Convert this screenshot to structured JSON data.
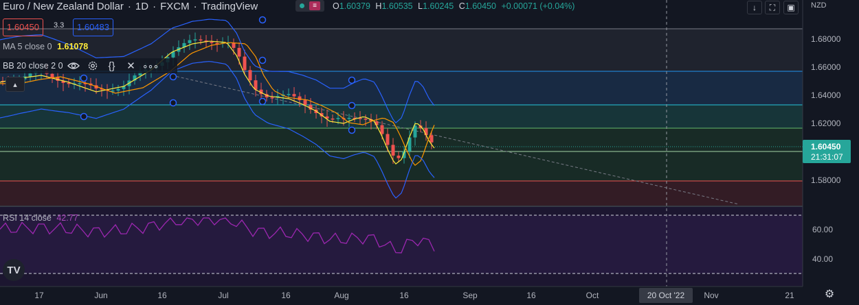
{
  "header": {
    "symbol": "Euro / New Zealand Dollar",
    "interval": "1D",
    "broker": "FXCM",
    "platform": "TradingView",
    "open_label": "O",
    "open": "1.60379",
    "high_label": "H",
    "high": "1.60535",
    "low_label": "L",
    "low": "1.60245",
    "close_label": "C",
    "close": "1.60450",
    "change": "+0.00071 (+0.04%)"
  },
  "quote": {
    "sell": "1.60450",
    "spread": "3.3",
    "buy": "1.60483"
  },
  "indicators": {
    "ma_label": "MA 5 close 0",
    "ma_value": "1.61078",
    "bb_label": "BB 20 close 2 0",
    "rsi_label": "RSI 14 close",
    "rsi_value": "42.77"
  },
  "price_axis": {
    "currency": "NZD",
    "labels": [
      "1.68000",
      "1.66000",
      "1.64000",
      "1.62000",
      "1.58000"
    ],
    "current_price": "1.60450",
    "countdown": "21:31:07"
  },
  "rsi_axis": {
    "labels": [
      "60.00",
      "40.00"
    ]
  },
  "time_axis": {
    "labels": [
      "17",
      "Jun",
      "16",
      "Jul",
      "16",
      "Aug",
      "16",
      "Sep",
      "16",
      "Oct",
      "Nov",
      "21"
    ],
    "crosshair_date": "20 Oct '22"
  },
  "colors": {
    "background": "#131722",
    "up": "#26a69a",
    "down": "#ef5350",
    "ma": "#ffeb3b",
    "bollinger": "#2962ff",
    "orange_ma": "#ff9800",
    "rsi": "#9c27b0"
  },
  "icons": [
    "eye-icon",
    "settings-icon",
    "source-code-icon",
    "close-icon",
    "more-icon",
    "collapse-icon",
    "arrow-down-icon",
    "fullscreen-icon",
    "screenshot-icon",
    "gear-icon",
    "tradingview-logo"
  ]
}
